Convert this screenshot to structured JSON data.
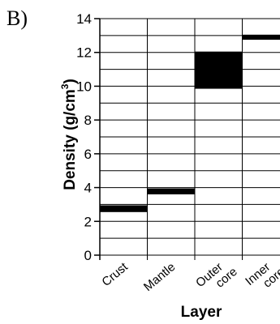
{
  "panel_label": "B)",
  "chart_data": {
    "type": "bar",
    "xlabel": "Layer",
    "ylabel": "Density (g/cm",
    "ylabel_superscript": "3",
    "ylabel_close": ")",
    "ylim": [
      0,
      14
    ],
    "ytick_step": 2,
    "minor_step": 1,
    "grid": true,
    "categories": [
      {
        "lines": [
          "Crust"
        ]
      },
      {
        "lines": [
          "Mantle"
        ]
      },
      {
        "lines": [
          "Outer",
          "core"
        ]
      },
      {
        "lines": [
          "Inner",
          "core"
        ]
      }
    ],
    "ranges": [
      {
        "category": "Crust",
        "low": 2.55,
        "high": 2.95
      },
      {
        "category": "Mantle",
        "low": 3.6,
        "high": 3.95
      },
      {
        "category": "Outer core",
        "low": 9.85,
        "high": 12.05
      },
      {
        "category": "Inner core",
        "low": 12.75,
        "high": 13.05
      }
    ],
    "colors": {
      "bar": "#000000",
      "grid": "#000000"
    }
  }
}
